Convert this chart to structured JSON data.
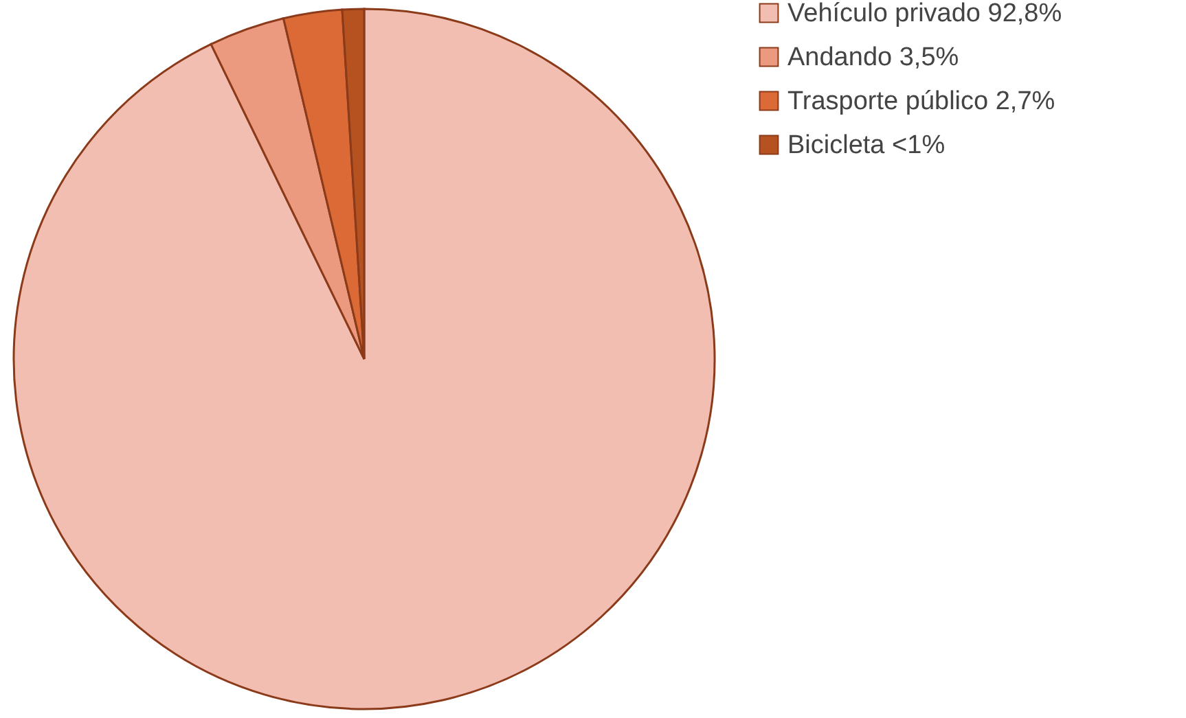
{
  "chart_data": {
    "type": "pie",
    "categories": [
      "Vehículo privado 92,8%",
      "Andando 3,5%",
      "Trasporte público 2,7%",
      "Bicicleta <1%"
    ],
    "values": [
      92.8,
      3.5,
      2.7,
      1.0
    ],
    "colors": [
      "#f2beb2",
      "#eb9a80",
      "#dc6a37",
      "#b5521f"
    ],
    "legend": "right"
  }
}
